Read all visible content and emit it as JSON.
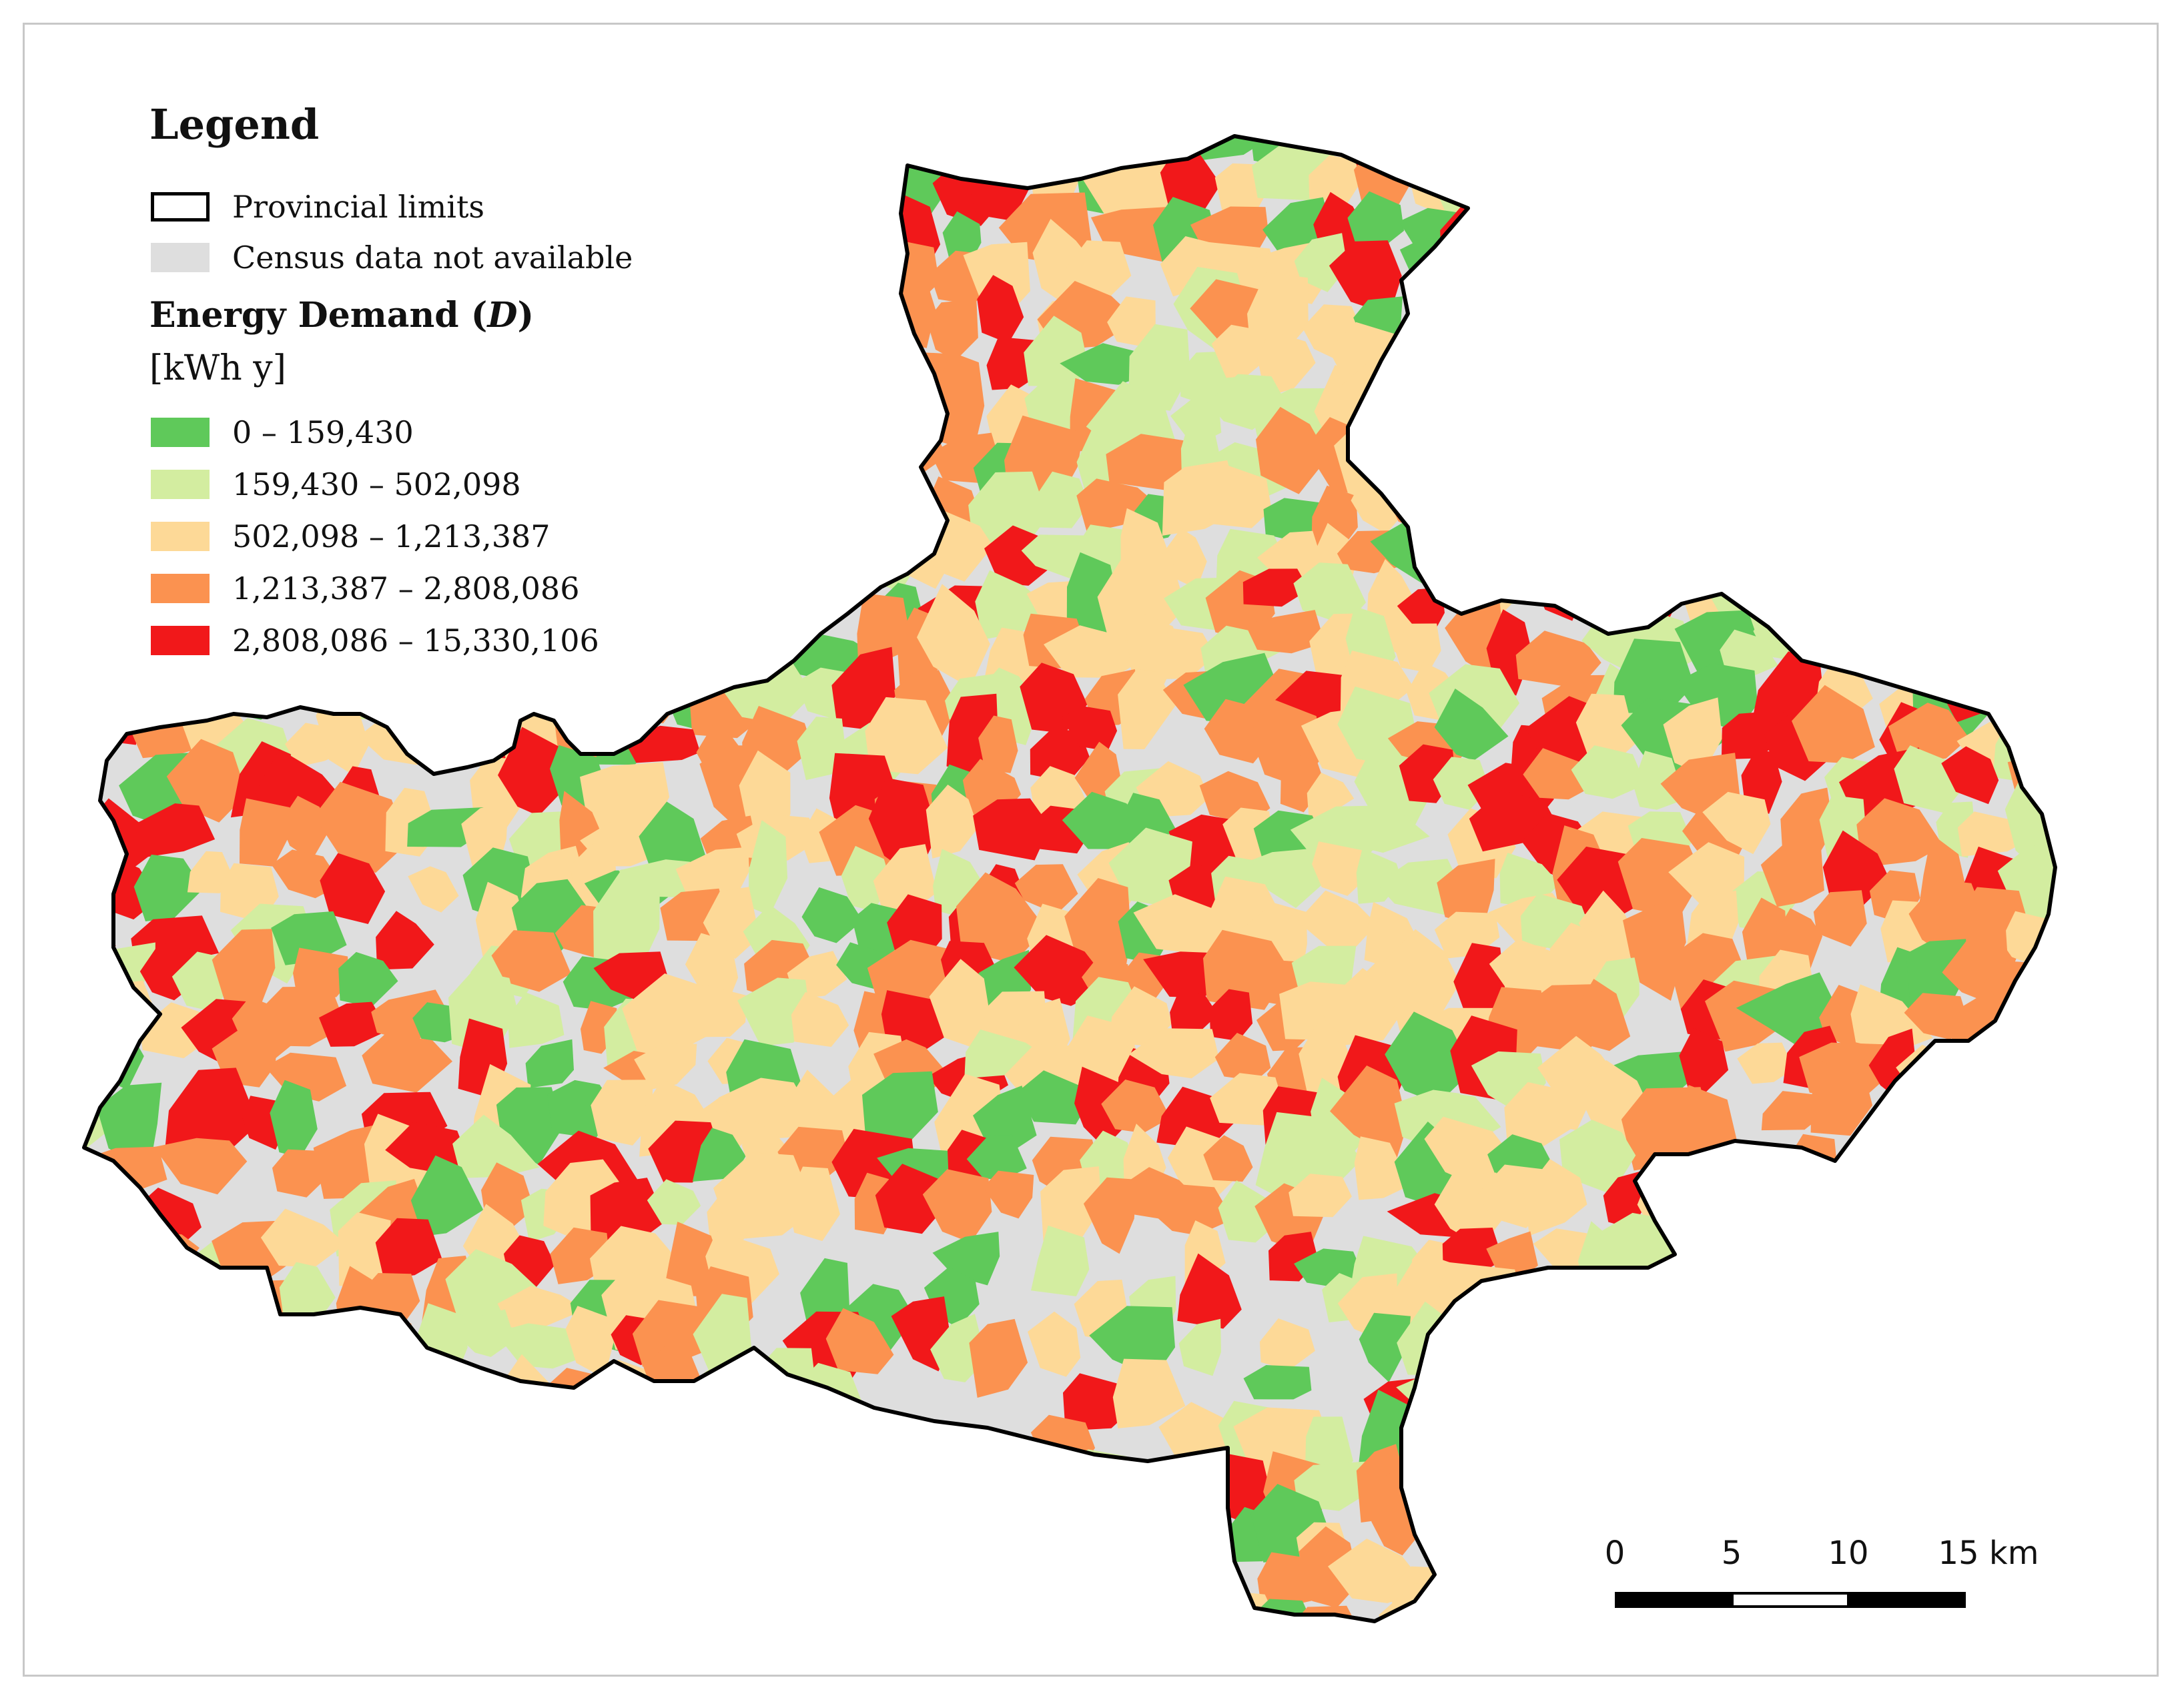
{
  "legend": {
    "title": "Legend",
    "provincial_label": "Provincial limits",
    "na_label": "Census data not available",
    "na_color": "#dedede",
    "heading_main": "Energy Demand (",
    "heading_var": "D",
    "heading_close": ")",
    "unit": "[kWh y]",
    "classes": [
      {
        "label": "0 – 159,430",
        "color": "#5fc95a"
      },
      {
        "label": "159,430  – 502,098",
        "color": "#d3eda0"
      },
      {
        "label": "502,098  – 1,213,387",
        "color": "#fdd997"
      },
      {
        "label": "1,213,387 – 2,808,086",
        "color": "#fb9250"
      },
      {
        "label": "2,808,086 – 15,330,106",
        "color": "#f1181a"
      }
    ]
  },
  "scale_bar": {
    "ticks": [
      "0",
      "5",
      "10",
      "15 km"
    ]
  },
  "colors": {
    "boundary": "#000000",
    "na": "#dedede"
  }
}
